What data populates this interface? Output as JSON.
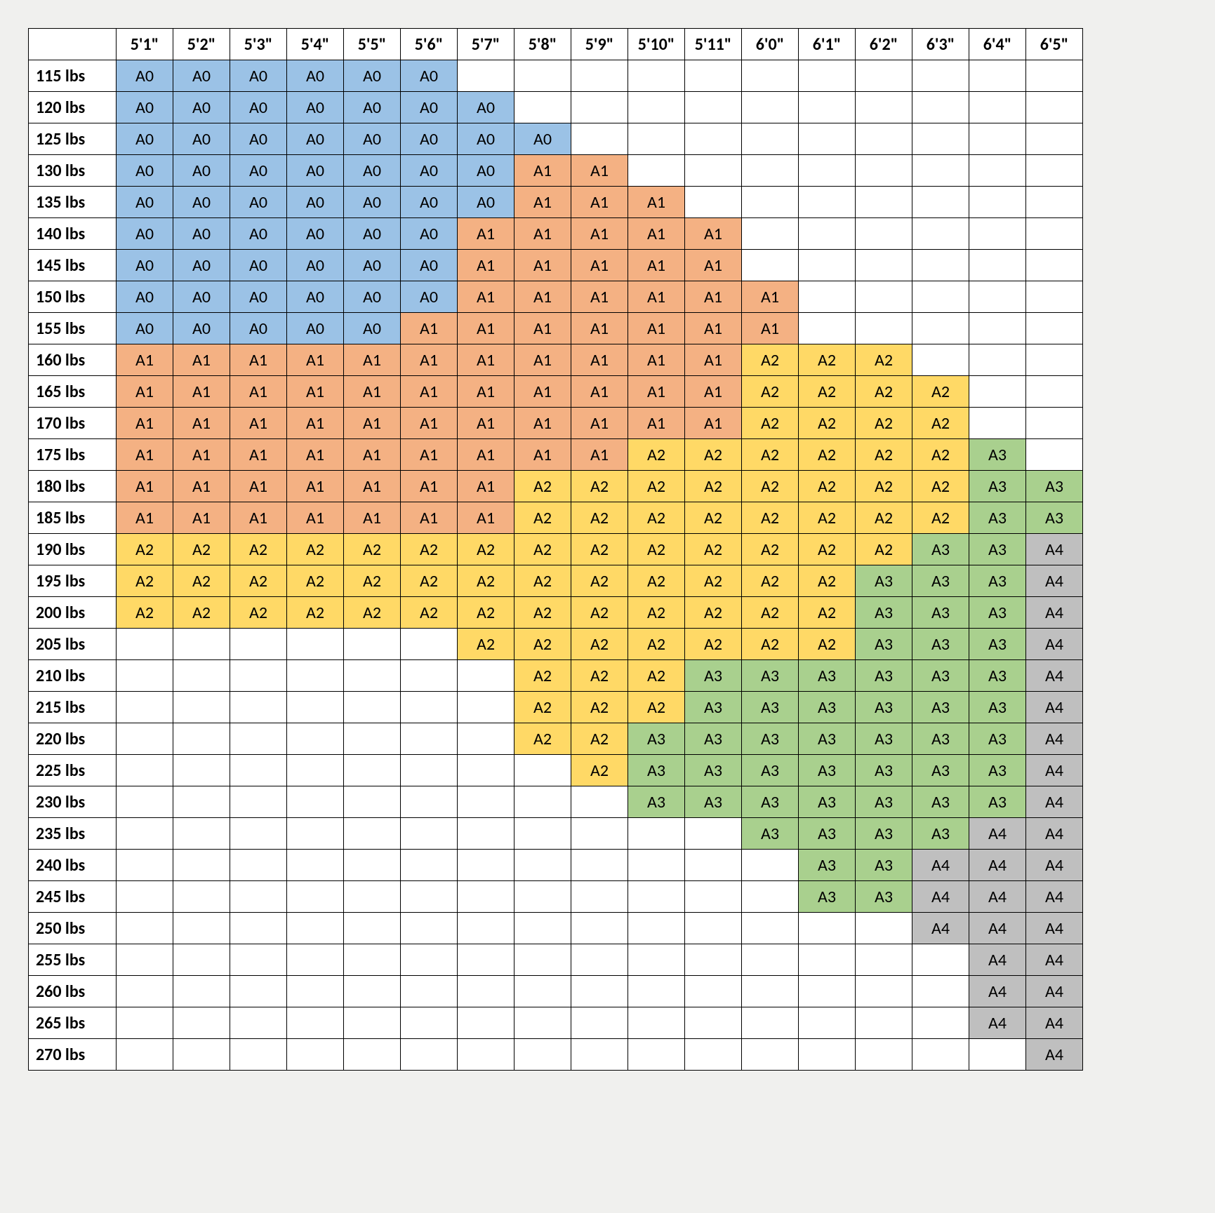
{
  "table": {
    "type": "table",
    "background_color": "#f0f0ee",
    "cell_bg_default": "#ffffff",
    "border_color": "#000000",
    "font_family": "Calibri, Arial, sans-serif",
    "header_fontsize": 24,
    "cell_fontsize": 24,
    "colors": {
      "A0": "#9bc2e6",
      "A1": "#f4b183",
      "A2": "#ffd966",
      "A3": "#a9d08e",
      "A4": "#bfbfbf",
      "": "#ffffff"
    },
    "col_headers": [
      "5'1\"",
      "5'2\"",
      "5'3\"",
      "5'4\"",
      "5'5\"",
      "5'6\"",
      "5'7\"",
      "5'8\"",
      "5'9\"",
      "5'10\"",
      "5'11\"",
      "6'0\"",
      "6'1\"",
      "6'2\"",
      "6'3\"",
      "6'4\"",
      "6'5\""
    ],
    "row_headers": [
      "115 lbs",
      "120 lbs",
      "125 lbs",
      "130 lbs",
      "135 lbs",
      "140 lbs",
      "145 lbs",
      "150 lbs",
      "155 lbs",
      "160 lbs",
      "165 lbs",
      "170 lbs",
      "175 lbs",
      "180 lbs",
      "185 lbs",
      "190 lbs",
      "195 lbs",
      "200 lbs",
      "205 lbs",
      "210 lbs",
      "215 lbs",
      "220 lbs",
      "225 lbs",
      "230 lbs",
      "235 lbs",
      "240 lbs",
      "245 lbs",
      "250 lbs",
      "255 lbs",
      "260 lbs",
      "265 lbs",
      "270 lbs"
    ],
    "cells": [
      [
        "A0",
        "A0",
        "A0",
        "A0",
        "A0",
        "A0",
        "",
        "",
        "",
        "",
        "",
        "",
        "",
        "",
        "",
        "",
        ""
      ],
      [
        "A0",
        "A0",
        "A0",
        "A0",
        "A0",
        "A0",
        "A0",
        "",
        "",
        "",
        "",
        "",
        "",
        "",
        "",
        "",
        ""
      ],
      [
        "A0",
        "A0",
        "A0",
        "A0",
        "A0",
        "A0",
        "A0",
        "A0",
        "",
        "",
        "",
        "",
        "",
        "",
        "",
        "",
        ""
      ],
      [
        "A0",
        "A0",
        "A0",
        "A0",
        "A0",
        "A0",
        "A0",
        "A1",
        "A1",
        "",
        "",
        "",
        "",
        "",
        "",
        "",
        ""
      ],
      [
        "A0",
        "A0",
        "A0",
        "A0",
        "A0",
        "A0",
        "A0",
        "A1",
        "A1",
        "A1",
        "",
        "",
        "",
        "",
        "",
        "",
        ""
      ],
      [
        "A0",
        "A0",
        "A0",
        "A0",
        "A0",
        "A0",
        "A1",
        "A1",
        "A1",
        "A1",
        "A1",
        "",
        "",
        "",
        "",
        "",
        ""
      ],
      [
        "A0",
        "A0",
        "A0",
        "A0",
        "A0",
        "A0",
        "A1",
        "A1",
        "A1",
        "A1",
        "A1",
        "",
        "",
        "",
        "",
        "",
        ""
      ],
      [
        "A0",
        "A0",
        "A0",
        "A0",
        "A0",
        "A0",
        "A1",
        "A1",
        "A1",
        "A1",
        "A1",
        "A1",
        "",
        "",
        "",
        "",
        ""
      ],
      [
        "A0",
        "A0",
        "A0",
        "A0",
        "A0",
        "A1",
        "A1",
        "A1",
        "A1",
        "A1",
        "A1",
        "A1",
        "",
        "",
        "",
        "",
        ""
      ],
      [
        "A1",
        "A1",
        "A1",
        "A1",
        "A1",
        "A1",
        "A1",
        "A1",
        "A1",
        "A1",
        "A1",
        "A2",
        "A2",
        "A2",
        "",
        "",
        ""
      ],
      [
        "A1",
        "A1",
        "A1",
        "A1",
        "A1",
        "A1",
        "A1",
        "A1",
        "A1",
        "A1",
        "A1",
        "A2",
        "A2",
        "A2",
        "A2",
        "",
        ""
      ],
      [
        "A1",
        "A1",
        "A1",
        "A1",
        "A1",
        "A1",
        "A1",
        "A1",
        "A1",
        "A1",
        "A1",
        "A2",
        "A2",
        "A2",
        "A2",
        "",
        ""
      ],
      [
        "A1",
        "A1",
        "A1",
        "A1",
        "A1",
        "A1",
        "A1",
        "A1",
        "A1",
        "A2",
        "A2",
        "A2",
        "A2",
        "A2",
        "A2",
        "A3",
        ""
      ],
      [
        "A1",
        "A1",
        "A1",
        "A1",
        "A1",
        "A1",
        "A1",
        "A2",
        "A2",
        "A2",
        "A2",
        "A2",
        "A2",
        "A2",
        "A2",
        "A3",
        "A3"
      ],
      [
        "A1",
        "A1",
        "A1",
        "A1",
        "A1",
        "A1",
        "A1",
        "A2",
        "A2",
        "A2",
        "A2",
        "A2",
        "A2",
        "A2",
        "A2",
        "A3",
        "A3"
      ],
      [
        "A2",
        "A2",
        "A2",
        "A2",
        "A2",
        "A2",
        "A2",
        "A2",
        "A2",
        "A2",
        "A2",
        "A2",
        "A2",
        "A2",
        "A3",
        "A3",
        "A4"
      ],
      [
        "A2",
        "A2",
        "A2",
        "A2",
        "A2",
        "A2",
        "A2",
        "A2",
        "A2",
        "A2",
        "A2",
        "A2",
        "A2",
        "A3",
        "A3",
        "A3",
        "A4"
      ],
      [
        "A2",
        "A2",
        "A2",
        "A2",
        "A2",
        "A2",
        "A2",
        "A2",
        "A2",
        "A2",
        "A2",
        "A2",
        "A2",
        "A3",
        "A3",
        "A3",
        "A4"
      ],
      [
        "",
        "",
        "",
        "",
        "",
        "",
        "A2",
        "A2",
        "A2",
        "A2",
        "A2",
        "A2",
        "A2",
        "A3",
        "A3",
        "A3",
        "A4"
      ],
      [
        "",
        "",
        "",
        "",
        "",
        "",
        "",
        "A2",
        "A2",
        "A2",
        "A3",
        "A3",
        "A3",
        "A3",
        "A3",
        "A3",
        "A4"
      ],
      [
        "",
        "",
        "",
        "",
        "",
        "",
        "",
        "A2",
        "A2",
        "A2",
        "A3",
        "A3",
        "A3",
        "A3",
        "A3",
        "A3",
        "A4"
      ],
      [
        "",
        "",
        "",
        "",
        "",
        "",
        "",
        "A2",
        "A2",
        "A3",
        "A3",
        "A3",
        "A3",
        "A3",
        "A3",
        "A3",
        "A4"
      ],
      [
        "",
        "",
        "",
        "",
        "",
        "",
        "",
        "",
        "A2",
        "A3",
        "A3",
        "A3",
        "A3",
        "A3",
        "A3",
        "A3",
        "A4"
      ],
      [
        "",
        "",
        "",
        "",
        "",
        "",
        "",
        "",
        "",
        "A3",
        "A3",
        "A3",
        "A3",
        "A3",
        "A3",
        "A3",
        "A4"
      ],
      [
        "",
        "",
        "",
        "",
        "",
        "",
        "",
        "",
        "",
        "",
        "",
        "A3",
        "A3",
        "A3",
        "A3",
        "A4",
        "A4"
      ],
      [
        "",
        "",
        "",
        "",
        "",
        "",
        "",
        "",
        "",
        "",
        "",
        "",
        "A3",
        "A3",
        "A4",
        "A4",
        "A4"
      ],
      [
        "",
        "",
        "",
        "",
        "",
        "",
        "",
        "",
        "",
        "",
        "",
        "",
        "A3",
        "A3",
        "A4",
        "A4",
        "A4"
      ],
      [
        "",
        "",
        "",
        "",
        "",
        "",
        "",
        "",
        "",
        "",
        "",
        "",
        "",
        "",
        "A4",
        "A4",
        "A4"
      ],
      [
        "",
        "",
        "",
        "",
        "",
        "",
        "",
        "",
        "",
        "",
        "",
        "",
        "",
        "",
        "",
        "A4",
        "A4"
      ],
      [
        "",
        "",
        "",
        "",
        "",
        "",
        "",
        "",
        "",
        "",
        "",
        "",
        "",
        "",
        "",
        "A4",
        "A4"
      ],
      [
        "",
        "",
        "",
        "",
        "",
        "",
        "",
        "",
        "",
        "",
        "",
        "",
        "",
        "",
        "",
        "A4",
        "A4"
      ],
      [
        "",
        "",
        "",
        "",
        "",
        "",
        "",
        "",
        "",
        "",
        "",
        "",
        "",
        "",
        "",
        "",
        "A4"
      ]
    ]
  }
}
